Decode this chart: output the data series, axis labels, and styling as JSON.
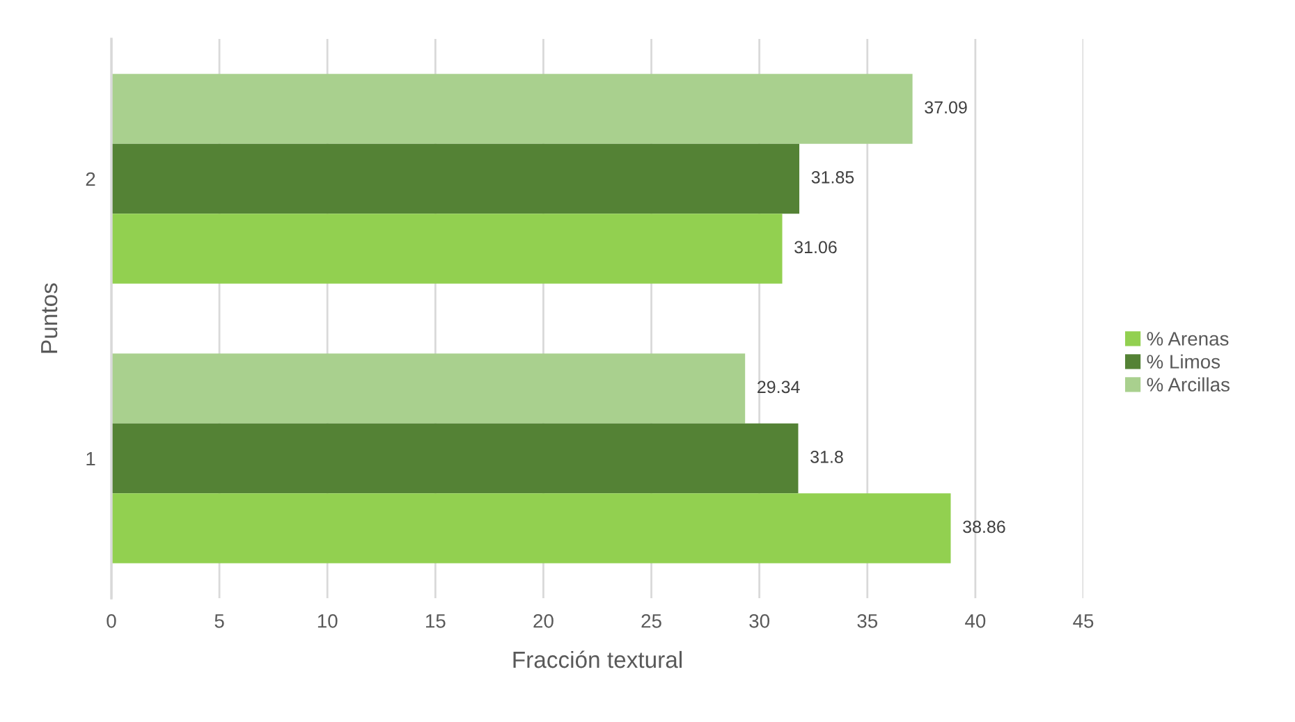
{
  "chart_data": {
    "type": "bar",
    "orientation": "horizontal",
    "xlabel": "Fracción textural",
    "ylabel": "Puntos",
    "categories": [
      "2",
      "1"
    ],
    "series": [
      {
        "name": "% Arenas",
        "color": "#92d050",
        "values": [
          31.06,
          38.86
        ]
      },
      {
        "name": "% Limos",
        "color": "#548235",
        "values": [
          31.85,
          31.8
        ]
      },
      {
        "name": "% Arcillas",
        "color": "#a9d08e",
        "values": [
          37.09,
          29.34
        ]
      }
    ],
    "xlim": [
      0,
      45
    ],
    "xticks": [
      0,
      5,
      10,
      15,
      20,
      25,
      30,
      35,
      40,
      45
    ],
    "grid": "x",
    "legend": "right",
    "data_labels": true
  }
}
